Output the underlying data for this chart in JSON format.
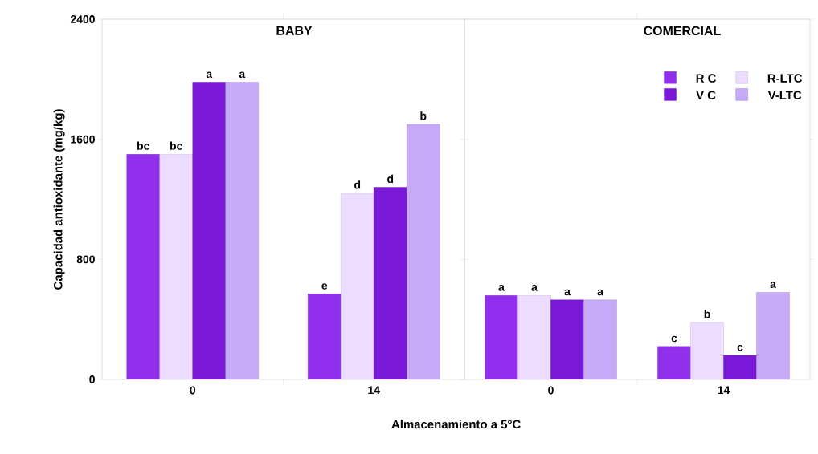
{
  "chart_data": [
    {
      "type": "bar",
      "title": "BABY",
      "xlabel": "Almacenamiento a 5°C",
      "ylabel": "Capacidad antioxidante (mg/kg)",
      "categories": [
        "0",
        "14"
      ],
      "ylim": [
        0,
        2400
      ],
      "yticks": [
        0,
        800,
        1600,
        2400
      ],
      "series": [
        {
          "color": "#9030ec",
          "values": [
            1500,
            570
          ],
          "value_labels": [
            "bc",
            "e"
          ]
        },
        {
          "color": "#ecdcff",
          "values": [
            1500,
            1240
          ],
          "value_labels": [
            "bc",
            "d"
          ]
        },
        {
          "color": "#7a18d8",
          "values": [
            1980,
            1280
          ],
          "value_labels": [
            "a",
            "d"
          ]
        },
        {
          "color": "#c6aaf8",
          "values": [
            1980,
            1700
          ],
          "value_labels": [
            "a",
            "b"
          ]
        }
      ]
    },
    {
      "type": "bar",
      "title": "COMERCIAL",
      "categories": [
        "0",
        "14"
      ],
      "ylim": [
        0,
        2400
      ],
      "yticks": [
        0,
        800,
        1600,
        2400
      ],
      "tick_labels": "x",
      "legend": "top right",
      "series": [
        {
          "name": "R C",
          "color": "#9030ec",
          "values": [
            560,
            220
          ],
          "value_labels": [
            "a",
            "c"
          ]
        },
        {
          "name": "R-LTC",
          "color": "#ecdcff",
          "values": [
            560,
            380
          ],
          "value_labels": [
            "a",
            "b"
          ]
        },
        {
          "name": "V C",
          "color": "#7a18d8",
          "values": [
            530,
            160
          ],
          "value_labels": [
            "a",
            "c"
          ]
        },
        {
          "name": "V-LTC",
          "color": "#c6aaf8",
          "values": [
            530,
            580
          ],
          "value_labels": [
            "a",
            "a"
          ]
        }
      ]
    }
  ]
}
